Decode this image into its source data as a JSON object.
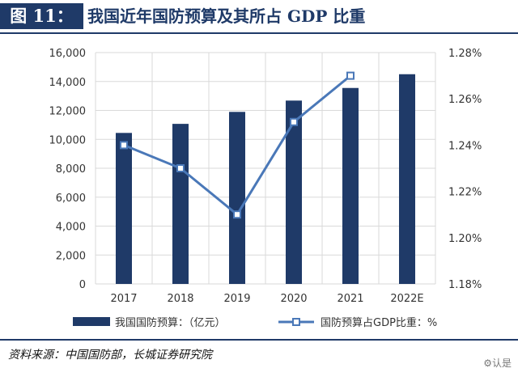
{
  "figure": {
    "tag": "图 11：",
    "title": "我国近年国防预算及其所占 GDP 比重"
  },
  "source": "资料来源：中国国防部，长城证券研究院",
  "watermark": "⚙认是",
  "colors": {
    "bar": "#1f3a68",
    "line": "#4a78b8",
    "grid": "#d9d9d9"
  },
  "chart_data": {
    "type": "bar",
    "categories": [
      "2017",
      "2018",
      "2019",
      "2020",
      "2021",
      "2022E"
    ],
    "y_left": {
      "range": [
        0,
        16000
      ],
      "ticks": [
        0,
        2000,
        4000,
        6000,
        8000,
        10000,
        12000,
        14000,
        16000
      ],
      "tick_labels": [
        "0",
        "2,000",
        "4,000",
        "6,000",
        "8,000",
        "10,000",
        "12,000",
        "14,000",
        "16,000"
      ]
    },
    "y_right": {
      "range": [
        1.18,
        1.28
      ],
      "ticks": [
        1.18,
        1.2,
        1.22,
        1.24,
        1.26,
        1.28
      ],
      "tick_labels": [
        "1.18%",
        "1.20%",
        "1.22%",
        "1.24%",
        "1.26%",
        "1.28%"
      ]
    },
    "grid": true,
    "legend_position": "bottom",
    "series": [
      {
        "name": "我国国防预算：（亿元）",
        "type": "bar",
        "axis": "left",
        "values": [
          10444,
          11070,
          11899,
          12680,
          13553,
          14504
        ]
      },
      {
        "name": "国防预算占GDP比重：%",
        "type": "line",
        "axis": "right",
        "values": [
          1.24,
          1.23,
          1.21,
          1.25,
          1.27,
          null
        ]
      }
    ]
  }
}
